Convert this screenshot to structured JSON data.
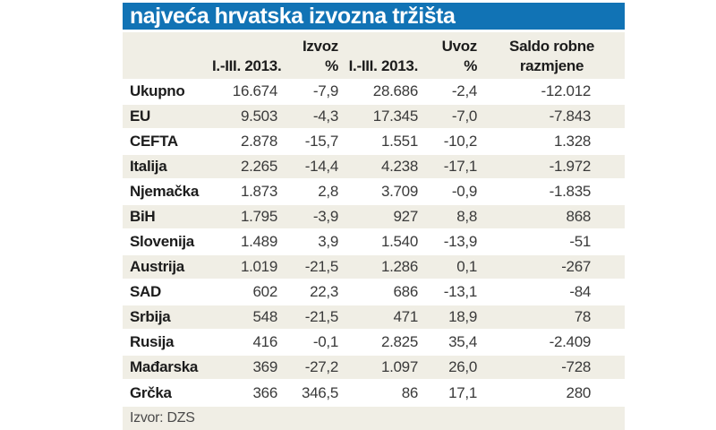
{
  "title": "najveća hrvatska izvozna tržišta",
  "source": "Izvor: DZS",
  "colors": {
    "accent_blue": "#1173b5",
    "band_cream": "#f0eee5",
    "title_text": "#ffffff",
    "body_text": "#1c1c1c"
  },
  "header": {
    "group_izvoz": "Izvoz",
    "group_uvoz": "Uvoz",
    "period_izvoz": "I.-III. 2013.",
    "pct_izvoz": "%",
    "period_uvoz": "I.-III. 2013.",
    "pct_uvoz": "%",
    "saldo_line1": "Saldo robne",
    "saldo_line2": "razmjene"
  },
  "chart_data": {
    "type": "table",
    "title": "najveća hrvatska izvozna tržišta",
    "column_groups": [
      {
        "label": "Izvoz",
        "columns": [
          "I.-III. 2013.",
          "%"
        ]
      },
      {
        "label": "Uvoz",
        "columns": [
          "I.-III. 2013.",
          "%"
        ]
      },
      {
        "label": "Saldo robne razmjene",
        "columns": []
      }
    ],
    "rows": [
      {
        "label": "Ukupno",
        "izvoz": "16.674",
        "izvoz_pct": "-7,9",
        "uvoz": "28.686",
        "uvoz_pct": "-2,4",
        "saldo": "-12.012"
      },
      {
        "label": "EU",
        "izvoz": "9.503",
        "izvoz_pct": "-4,3",
        "uvoz": "17.345",
        "uvoz_pct": "-7,0",
        "saldo": "-7.843"
      },
      {
        "label": "CEFTA",
        "izvoz": "2.878",
        "izvoz_pct": "-15,7",
        "uvoz": "1.551",
        "uvoz_pct": "-10,2",
        "saldo": "1.328"
      },
      {
        "label": "Italija",
        "izvoz": "2.265",
        "izvoz_pct": "-14,4",
        "uvoz": "4.238",
        "uvoz_pct": "-17,1",
        "saldo": "-1.972"
      },
      {
        "label": "Njemačka",
        "izvoz": "1.873",
        "izvoz_pct": "2,8",
        "uvoz": "3.709",
        "uvoz_pct": "-0,9",
        "saldo": "-1.835"
      },
      {
        "label": "BiH",
        "izvoz": "1.795",
        "izvoz_pct": "-3,9",
        "uvoz": "927",
        "uvoz_pct": "8,8",
        "saldo": "868"
      },
      {
        "label": "Slovenija",
        "izvoz": "1.489",
        "izvoz_pct": "3,9",
        "uvoz": "1.540",
        "uvoz_pct": "-13,9",
        "saldo": "-51"
      },
      {
        "label": "Austrija",
        "izvoz": "1.019",
        "izvoz_pct": "-21,5",
        "uvoz": "1.286",
        "uvoz_pct": "0,1",
        "saldo": "-267"
      },
      {
        "label": "SAD",
        "izvoz": "602",
        "izvoz_pct": "22,3",
        "uvoz": "686",
        "uvoz_pct": "-13,1",
        "saldo": "-84"
      },
      {
        "label": "Srbija",
        "izvoz": "548",
        "izvoz_pct": "-21,5",
        "uvoz": "471",
        "uvoz_pct": "18,9",
        "saldo": "78"
      },
      {
        "label": "Rusija",
        "izvoz": "416",
        "izvoz_pct": "-0,1",
        "uvoz": "2.825",
        "uvoz_pct": "35,4",
        "saldo": "-2.409"
      },
      {
        "label": "Mađarska",
        "izvoz": "369",
        "izvoz_pct": "-27,2",
        "uvoz": "1.097",
        "uvoz_pct": "26,0",
        "saldo": "-728"
      },
      {
        "label": "Grčka",
        "izvoz": "366",
        "izvoz_pct": "346,5",
        "uvoz": "86",
        "uvoz_pct": "17,1",
        "saldo": "280"
      }
    ]
  }
}
